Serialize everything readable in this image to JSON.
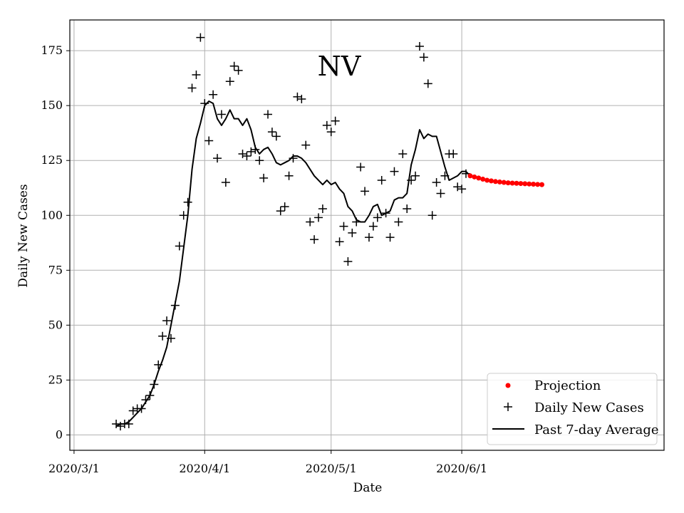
{
  "chart_data": {
    "type": "scatter",
    "title": "NV",
    "xlabel": "Date",
    "ylabel": "Daily New Cases",
    "x_day_range": [
      -1,
      140
    ],
    "ylim": [
      -7,
      189
    ],
    "grid": true,
    "legend_position": "bottom-right",
    "x_ticks": [
      {
        "day": 0,
        "label": "2020/3/1"
      },
      {
        "day": 31,
        "label": "2020/4/1"
      },
      {
        "day": 61,
        "label": "2020/5/1"
      },
      {
        "day": 92,
        "label": "2020/6/1"
      }
    ],
    "y_ticks": [
      0,
      25,
      50,
      75,
      100,
      125,
      150,
      175
    ],
    "legend": {
      "projection": "Projection",
      "daily": "Daily New Cases",
      "average": "Past 7-day Average"
    },
    "colors": {
      "projection": "#ff0000",
      "daily": "#000000",
      "average": "#000000",
      "grid": "#b0b0b0"
    },
    "series": [
      {
        "name": "Daily New Cases",
        "x_start_day": 10,
        "values": [
          5,
          4,
          5,
          5,
          11,
          12,
          12,
          16,
          18,
          23,
          32,
          45,
          52,
          44,
          59,
          86,
          100,
          106,
          158,
          164,
          181,
          151,
          134,
          155,
          126,
          146,
          115,
          161,
          168,
          166,
          128,
          127,
          129,
          130,
          125,
          117,
          146,
          138,
          136,
          102,
          104,
          118,
          126,
          154,
          153,
          132,
          97,
          89,
          99,
          103,
          141,
          138,
          143,
          88,
          95,
          79,
          92,
          97,
          122,
          111,
          90,
          95,
          99,
          116,
          101,
          90,
          120,
          97,
          128,
          103,
          116,
          118,
          177,
          172,
          160,
          100,
          115,
          110,
          118,
          128,
          128,
          113,
          112,
          119
        ]
      },
      {
        "name": "Past 7-day Average",
        "x_start_day": 10,
        "values": [
          4,
          5,
          5,
          6,
          8,
          10,
          12,
          15,
          18,
          23,
          29,
          34,
          40,
          50,
          60,
          70,
          85,
          100,
          121,
          135,
          142,
          150,
          152,
          151,
          144,
          141,
          144,
          148,
          144,
          144,
          141,
          144,
          139,
          131,
          128,
          130,
          131,
          128,
          124,
          123,
          124,
          125,
          127,
          127,
          126,
          124,
          121,
          118,
          116,
          114,
          116,
          114,
          115,
          112,
          110,
          104,
          102,
          98,
          97,
          97,
          100,
          104,
          105,
          100,
          101,
          102,
          107,
          108,
          108,
          110,
          123,
          130,
          139,
          135,
          137,
          136,
          136,
          129,
          122,
          116,
          117,
          118,
          120,
          120,
          118
        ]
      },
      {
        "name": "Projection",
        "x_start_day": 94,
        "values": [
          118,
          117.5,
          117,
          116.5,
          116,
          115.7,
          115.4,
          115.2,
          115,
          114.8,
          114.7,
          114.6,
          114.5,
          114.4,
          114.3,
          114.2,
          114.1,
          114
        ]
      }
    ]
  }
}
